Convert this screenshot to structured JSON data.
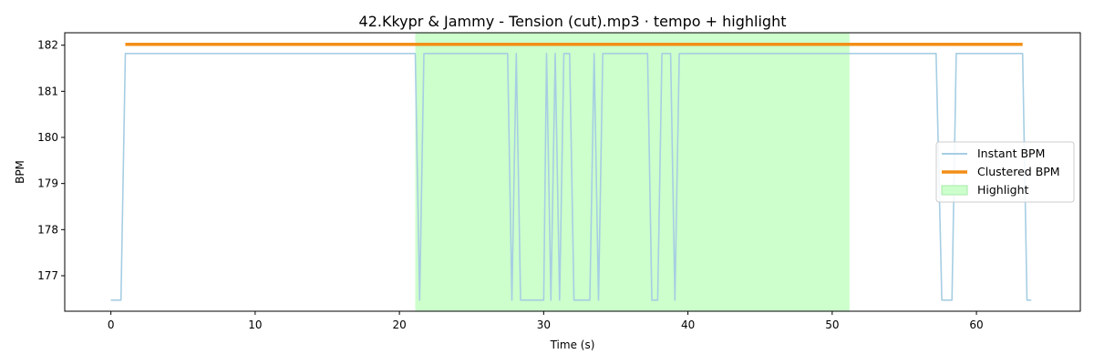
{
  "chart_data": {
    "type": "line",
    "title": "42.Kkypr & Jammy - Tension (cut).mp3 · tempo + highlight",
    "xlabel": "Time (s)",
    "ylabel": "BPM",
    "xlim": [
      -3.2,
      67.2
    ],
    "ylim": [
      176.23,
      182.27
    ],
    "xticks": [
      0,
      10,
      20,
      30,
      40,
      50,
      60
    ],
    "yticks": [
      177,
      178,
      179,
      180,
      181,
      182
    ],
    "grid": false,
    "legend_position": "center-right",
    "highlight": {
      "name": "Highlight",
      "x_start": 21.1,
      "x_end": 51.2,
      "color": "#ccffcc"
    },
    "series": [
      {
        "name": "Instant BPM",
        "color": "#a6cee3",
        "points": [
          [
            0,
            176.47
          ],
          [
            0.7,
            176.47
          ],
          [
            1.0,
            181.82
          ],
          [
            21.1,
            181.82
          ],
          [
            21.4,
            176.47
          ],
          [
            21.7,
            181.82
          ],
          [
            27.5,
            181.82
          ],
          [
            27.8,
            176.47
          ],
          [
            28.1,
            181.82
          ],
          [
            28.4,
            176.47
          ],
          [
            30.0,
            176.47
          ],
          [
            30.2,
            181.82
          ],
          [
            30.5,
            176.47
          ],
          [
            30.8,
            181.82
          ],
          [
            31.1,
            176.47
          ],
          [
            31.4,
            181.82
          ],
          [
            31.8,
            181.82
          ],
          [
            32.1,
            176.47
          ],
          [
            33.2,
            176.47
          ],
          [
            33.5,
            181.82
          ],
          [
            33.8,
            176.47
          ],
          [
            34.1,
            181.82
          ],
          [
            37.2,
            181.82
          ],
          [
            37.5,
            176.47
          ],
          [
            37.9,
            176.47
          ],
          [
            38.2,
            181.82
          ],
          [
            38.8,
            181.82
          ],
          [
            39.1,
            176.47
          ],
          [
            39.4,
            181.82
          ],
          [
            57.2,
            181.82
          ],
          [
            57.6,
            176.47
          ],
          [
            58.3,
            176.47
          ],
          [
            58.6,
            181.82
          ],
          [
            63.2,
            181.82
          ],
          [
            63.5,
            176.47
          ],
          [
            63.8,
            176.47
          ]
        ]
      },
      {
        "name": "Clustered BPM",
        "color": "#f28e16",
        "points": [
          [
            1.0,
            182.02
          ],
          [
            63.2,
            182.02
          ]
        ]
      }
    ]
  }
}
